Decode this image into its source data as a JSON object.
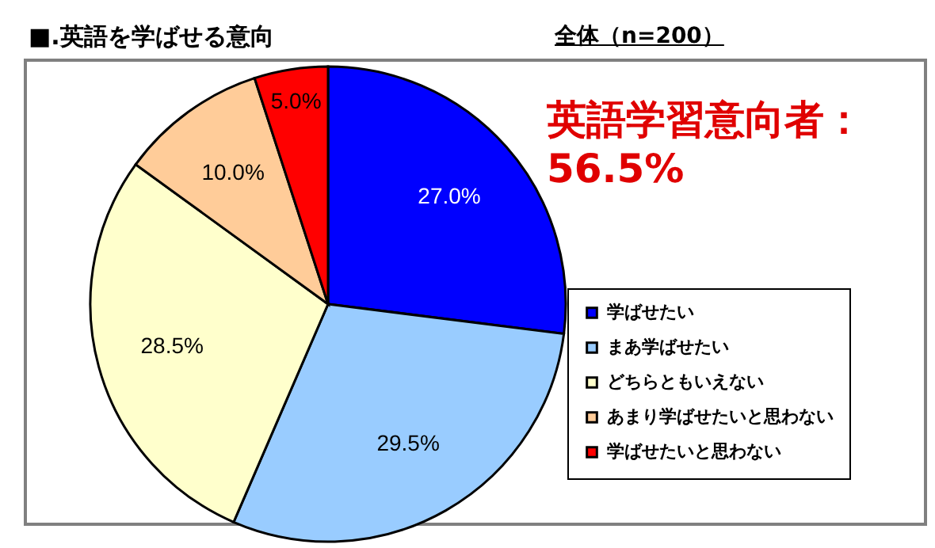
{
  "chart_data": {
    "type": "pie",
    "title": "■.英語を学ばせる意向",
    "subtitle": "全体（n=200）",
    "annotations": [
      "英語学習意向者：\n56.5%"
    ],
    "categories": [
      "学ばせたい",
      "まあ学ばせたい",
      "どちらともいえない",
      "あまり学ばせたいと思わない",
      "学ばせたいと思わない"
    ],
    "values": [
      27.0,
      29.5,
      28.5,
      10.0,
      5.0
    ],
    "value_labels": [
      "27.0%",
      "29.5%",
      "28.5%",
      "10.0%",
      "5.0%"
    ],
    "colors": [
      "#0000ff",
      "#99ccff",
      "#ffffcc",
      "#ffcc99",
      "#ff0000"
    ],
    "legend": "bottom right"
  }
}
